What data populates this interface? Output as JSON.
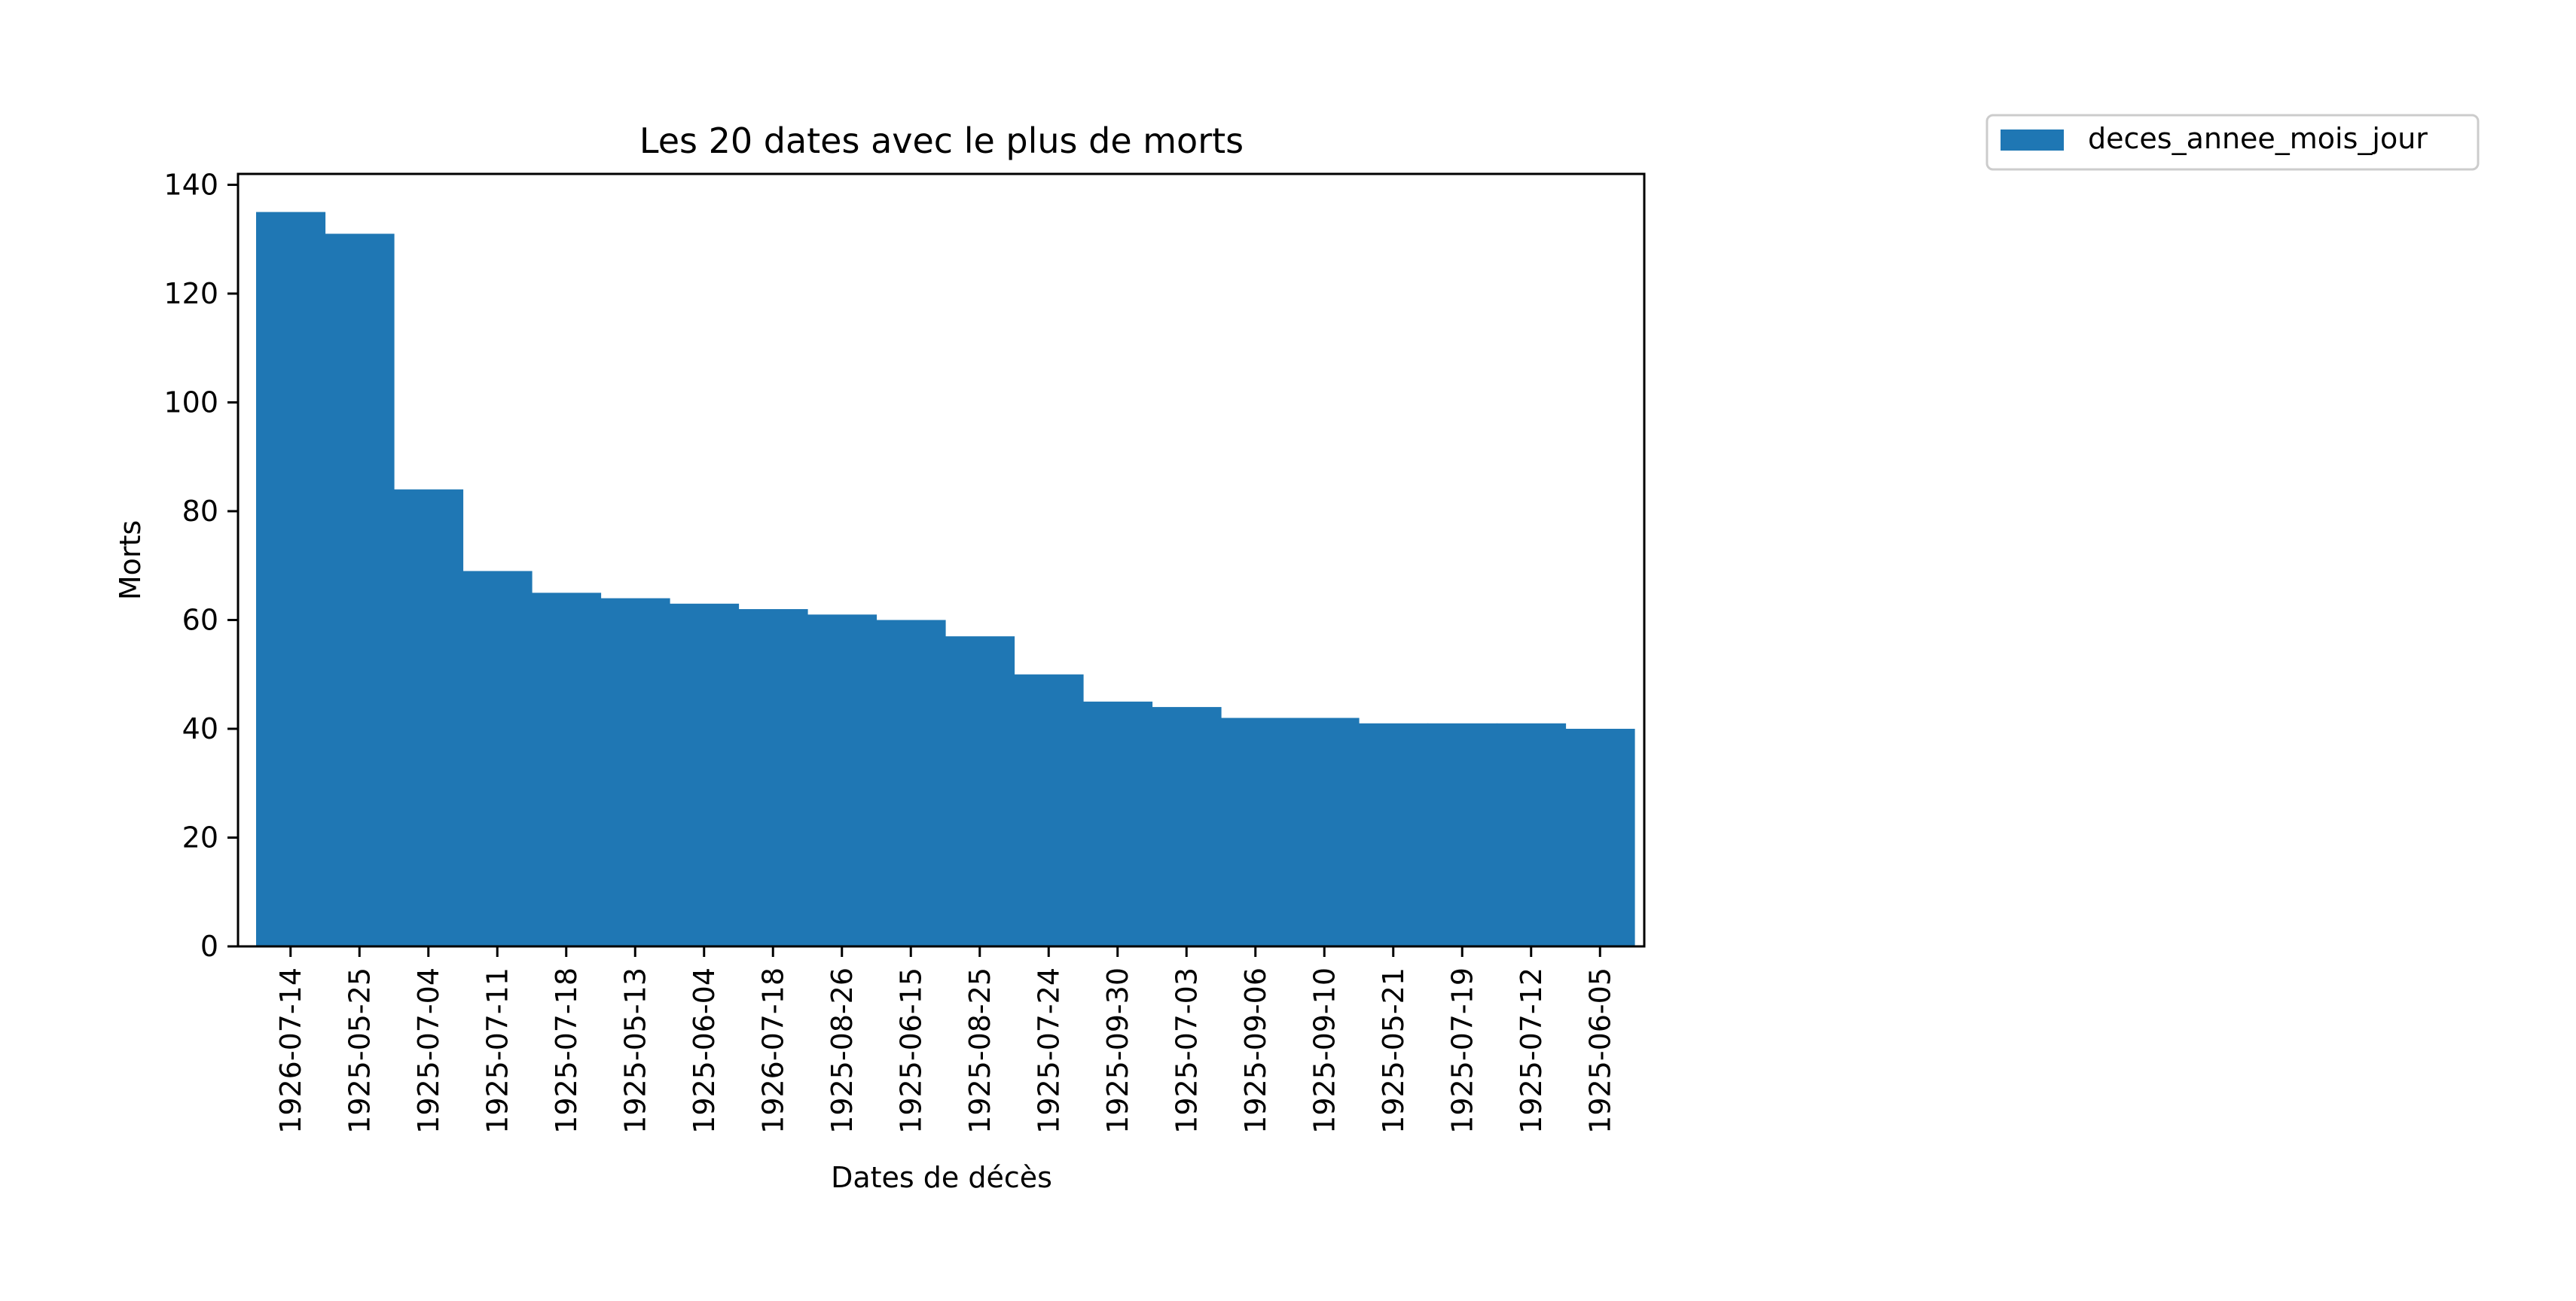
{
  "chart_data": {
    "type": "bar",
    "title": "Les 20 dates avec le plus de morts",
    "xlabel": "Dates de décès",
    "ylabel": "Morts",
    "categories": [
      "1926-07-14",
      "1925-05-25",
      "1925-07-04",
      "1925-07-11",
      "1925-07-18",
      "1925-05-13",
      "1925-06-04",
      "1926-07-18",
      "1925-08-26",
      "1925-06-15",
      "1925-08-25",
      "1925-07-24",
      "1925-09-30",
      "1925-07-03",
      "1925-09-06",
      "1925-09-10",
      "1925-05-21",
      "1925-07-19",
      "1925-07-12",
      "1925-06-05"
    ],
    "series": [
      {
        "name": "deces_annee_mois_jour",
        "values": [
          135,
          131,
          84,
          69,
          65,
          64,
          63,
          62,
          61,
          60,
          57,
          50,
          45,
          44,
          42,
          42,
          41,
          41,
          41,
          40
        ]
      }
    ],
    "ylim": [
      0,
      142
    ],
    "yticks": [
      "0",
      "20",
      "40",
      "60",
      "80",
      "100",
      "120",
      "140"
    ],
    "ytick_values": [
      0,
      20,
      40,
      60,
      80,
      100,
      120,
      140
    ],
    "grid": false,
    "legend_position": "upper right, outside plot",
    "bar_color": "#1f77b4"
  }
}
